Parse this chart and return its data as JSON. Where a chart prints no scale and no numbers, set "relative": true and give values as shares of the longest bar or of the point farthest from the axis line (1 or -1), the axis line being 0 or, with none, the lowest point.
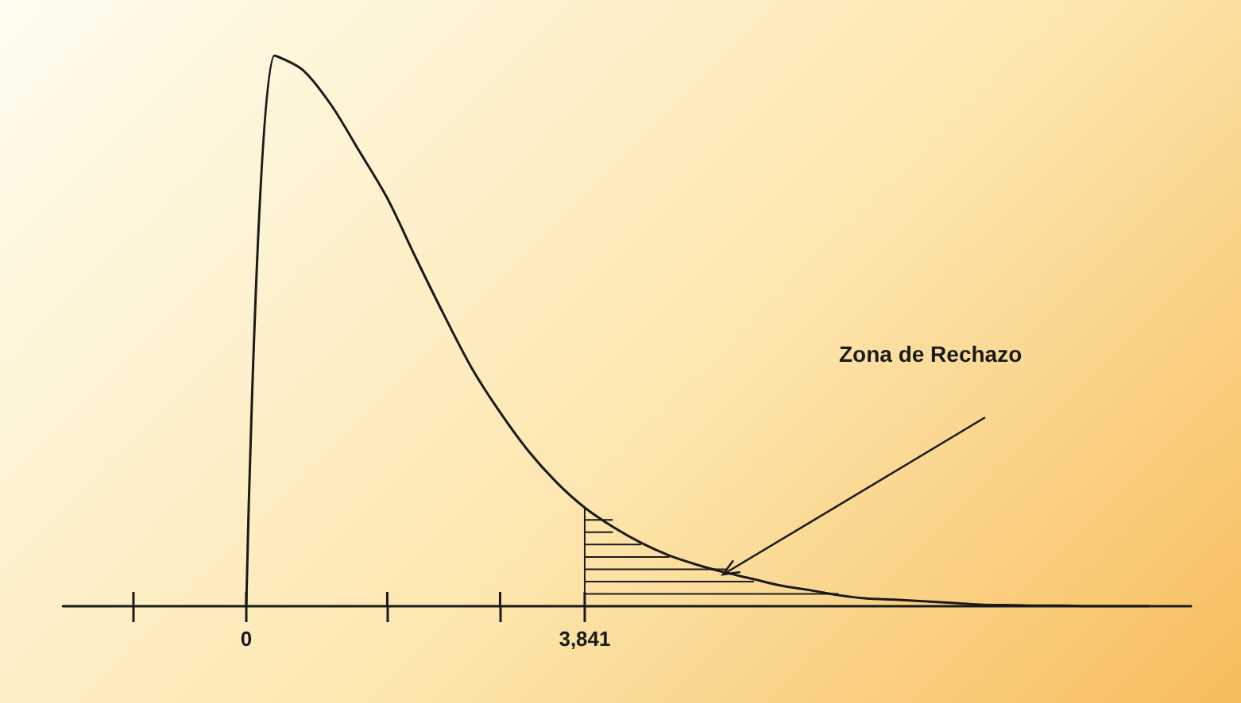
{
  "chart_data": {
    "type": "line",
    "relative": true,
    "categories": [
      null,
      null,
      null,
      null,
      null,
      null,
      "0",
      null,
      null,
      null,
      null,
      null,
      null,
      null,
      null,
      null,
      null,
      null,
      "3,841",
      null,
      null,
      null,
      null,
      null,
      null,
      null,
      null,
      null,
      null,
      null,
      null,
      null,
      null,
      null,
      null,
      null,
      null,
      null,
      null,
      null
    ],
    "series": [
      {
        "color": "#1a1a1a",
        "values": [
          null,
          null,
          null,
          null,
          null,
          null,
          0,
          1,
          0.974,
          0.911,
          0.827,
          0.741,
          0.634,
          0.53,
          0.432,
          0.352,
          0.282,
          0.225,
          0.179,
          0.144,
          0.115,
          0.092,
          0.075,
          0.061,
          0.049,
          0.037,
          0.029,
          0.02,
          0.014,
          0.012,
          0.009,
          0.006,
          0.003,
          0.002,
          0.001,
          0.001,
          0,
          0,
          0,
          null
        ]
      }
    ],
    "annotations": [
      "Zona de Rechazo"
    ],
    "tick_labels": "x",
    "grid": false,
    "marker": "none",
    "line_style": "solid"
  }
}
